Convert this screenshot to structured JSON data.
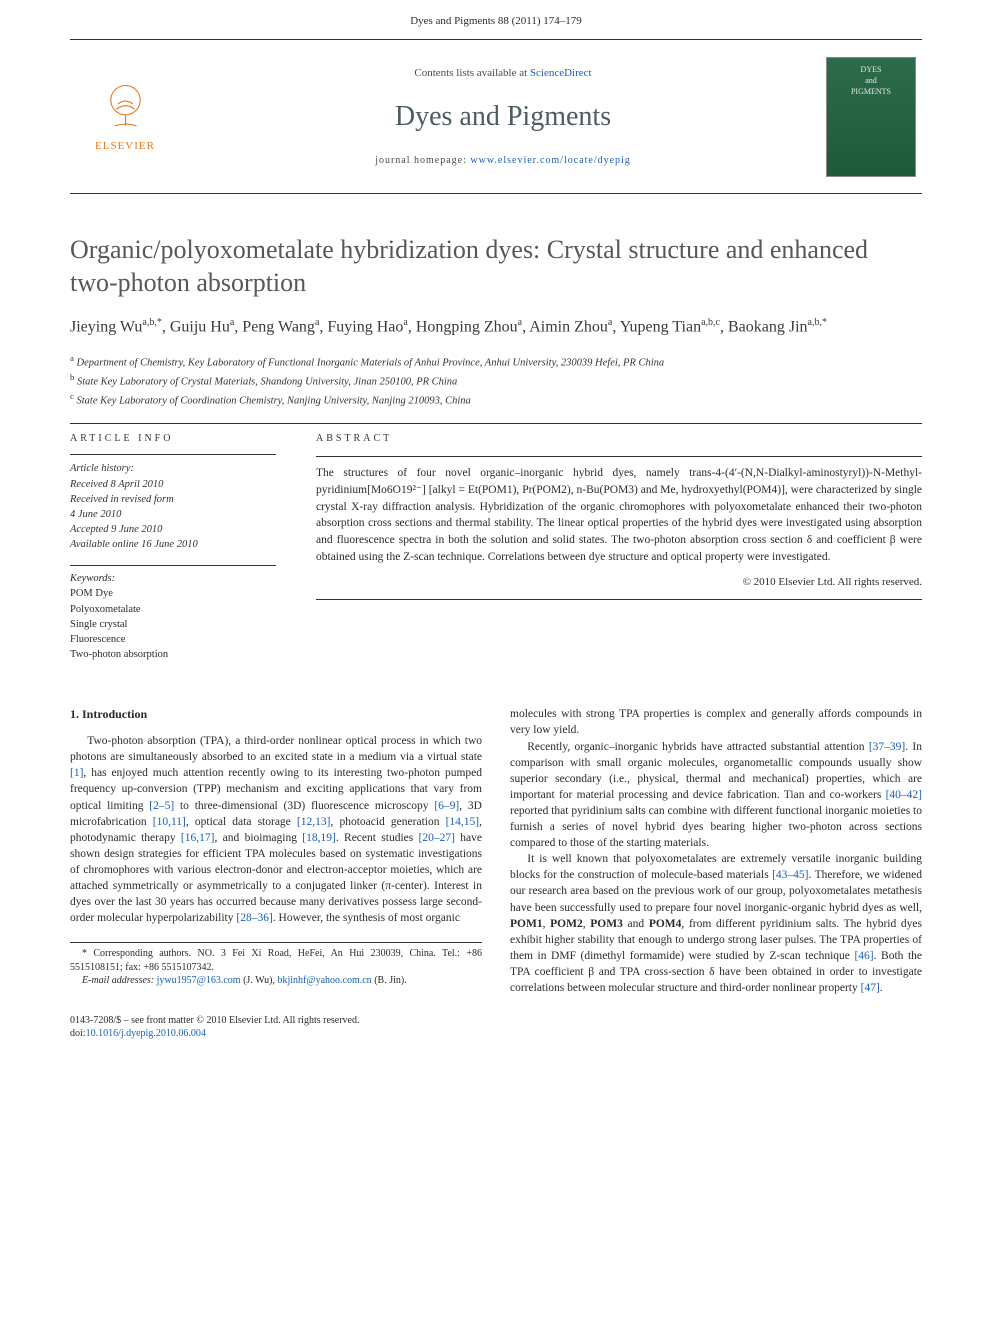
{
  "header": {
    "citation": "Dyes and Pigments 88 (2011) 174–179"
  },
  "masthead": {
    "publisher": "ELSEVIER",
    "contents_prefix": "Contents lists available at ",
    "contents_link": "ScienceDirect",
    "journal": "Dyes and Pigments",
    "homepage_prefix": "journal homepage: ",
    "homepage": "www.elsevier.com/locate/dyepig",
    "cover_line1": "DYES",
    "cover_line2": "and",
    "cover_line3": "PIGMENTS"
  },
  "article": {
    "title": "Organic/polyoxometalate hybridization dyes: Crystal structure and enhanced two-photon absorption",
    "authors_html": "Jieying Wu<sup>a,b,*</sup>, Guiju Hu<sup>a</sup>, Peng Wang<sup>a</sup>, Fuying Hao<sup>a</sup>, Hongping Zhou<sup>a</sup>, Aimin Zhou<sup>a</sup>, Yupeng Tian<sup>a,b,c</sup>, Baokang Jin<sup>a,b,*</sup>",
    "affiliations": [
      {
        "sup": "a",
        "text": "Department of Chemistry, Key Laboratory of Functional Inorganic Materials of Anhui Province, Anhui University, 230039 Hefei, PR China"
      },
      {
        "sup": "b",
        "text": "State Key Laboratory of Crystal Materials, Shandong University, Jinan 250100, PR China"
      },
      {
        "sup": "c",
        "text": "State Key Laboratory of Coordination Chemistry, Nanjing University, Nanjing 210093, China"
      }
    ]
  },
  "info": {
    "head": "ARTICLE INFO",
    "history_label": "Article history:",
    "history": [
      "Received 8 April 2010",
      "Received in revised form",
      "4 June 2010",
      "Accepted 9 June 2010",
      "Available online 16 June 2010"
    ],
    "keywords_label": "Keywords:",
    "keywords": [
      "POM Dye",
      "Polyoxometalate",
      "Single crystal",
      "Fluorescence",
      "Two-photon absorption"
    ]
  },
  "abstract": {
    "head": "ABSTRACT",
    "text": "The structures of four novel organic–inorganic hybrid dyes, namely trans-4-(4′-(N,N-Dialkyl-aminostyryl))-N-Methyl-pyridinium[Mo6O19²⁻] [alkyl = Et(POM1), Pr(POM2), n-Bu(POM3) and Me, hydroxyethyl(POM4)], were characterized by single crystal X-ray diffraction analysis. Hybridization of the organic chromophores with polyoxometalate enhanced their two-photon absorption cross sections and thermal stability. The linear optical properties of the hybrid dyes were investigated using absorption and fluorescence spectra in both the solution and solid states. The two-photon absorption cross section δ and coefficient β were obtained using the Z-scan technique. Correlations between dye structure and optical property were investigated.",
    "copyright": "© 2010 Elsevier Ltd. All rights reserved."
  },
  "body": {
    "section1_heading": "1. Introduction",
    "col1_p1": "Two-photon absorption (TPA), a third-order nonlinear optical process in which two photons are simultaneously absorbed to an excited state in a medium via a virtual state [1], has enjoyed much attention recently owing to its interesting two-photon pumped frequency up-conversion (TPP) mechanism and exciting applications that vary from optical limiting [2–5] to three-dimensional (3D) fluorescence microscopy [6–9], 3D microfabrication [10,11], optical data storage [12,13], photoacid generation [14,15], photodynamic therapy [16,17], and bioimaging [18,19]. Recent studies [20–27] have shown design strategies for efficient TPA molecules based on systematic investigations of chromophores with various electron-donor and electron-acceptor moieties, which are attached symmetrically or asymmetrically to a conjugated linker (π-center). Interest in dyes over the last 30 years has occurred because many derivatives possess large second-order molecular hyperpolarizability [28–36]. However, the synthesis of most organic",
    "col2_p1": "molecules with strong TPA properties is complex and generally affords compounds in very low yield.",
    "col2_p2": "Recently, organic–inorganic hybrids have attracted substantial attention [37–39]. In comparison with small organic molecules, organometallic compounds usually show superior secondary (i.e., physical, thermal and mechanical) properties, which are important for material processing and device fabrication. Tian and co-workers [40–42] reported that pyridinium salts can combine with different functional inorganic moieties to furnish a series of novel hybrid dyes bearing higher two-photon across sections compared to those of the starting materials.",
    "col2_p3": "It is well known that polyoxometalates are extremely versatile inorganic building blocks for the construction of molecule-based materials [43–45]. Therefore, we widened our research area based on the previous work of our group, polyoxometalates metathesis have been successfully used to prepare four novel inorganic-organic hybrid dyes as well, POM1, POM2, POM3 and POM4, from different pyridinium salts. The hybrid dyes exhibit higher stability that enough to undergo strong laser pulses. The TPA properties of them in DMF (dimethyl formamide) were studied by Z-scan technique [46]. Both the TPA coefficient β and TPA cross-section δ have been obtained in order to investigate correlations between molecular structure and third-order nonlinear property [47]."
  },
  "corr": {
    "line1": "* Corresponding authors. NO. 3 Fei Xi Road, HeFei, An Hui 230039, China. Tel.: +86 5515108151; fax: +86 5515107342.",
    "email_label": "E-mail addresses: ",
    "email1": "jywu1957@163.com",
    "email1_who": " (J. Wu), ",
    "email2": "bkjinhf@yahoo.com.cn",
    "email2_who": " (B. Jin)."
  },
  "footer": {
    "line1": "0143-7208/$ – see front matter © 2010 Elsevier Ltd. All rights reserved.",
    "doi_label": "doi:",
    "doi": "10.1016/j.dyepig.2010.06.004"
  },
  "colors": {
    "link": "#1a5fb4",
    "orange": "#e67817",
    "journal_gray": "#4e5b60"
  }
}
